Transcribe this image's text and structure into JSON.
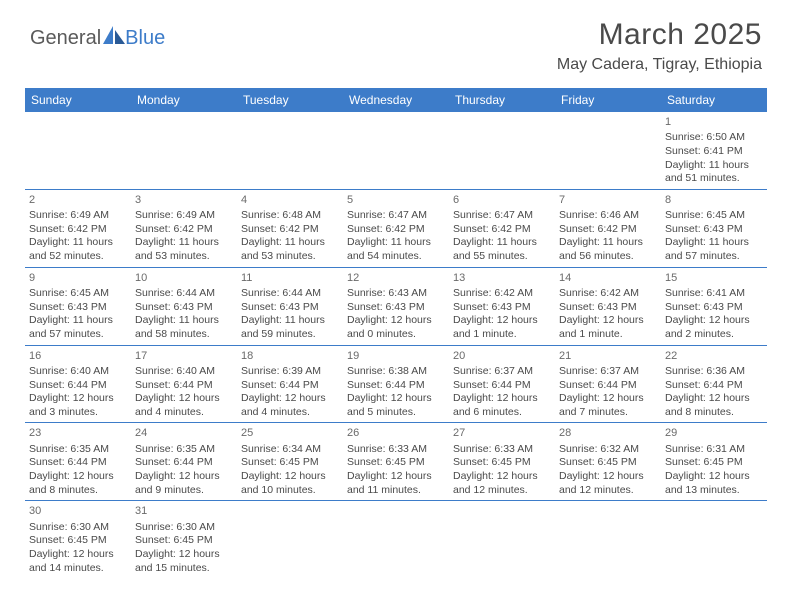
{
  "logo": {
    "part1": "General",
    "part2": "Blue"
  },
  "title": "March 2025",
  "location": "May Cadera, Tigray, Ethiopia",
  "colors": {
    "header_bg": "#3d7cc9",
    "header_text": "#ffffff",
    "body_text": "#4a4a4a",
    "daynum": "#6a6a6a",
    "row_border": "#3d7cc9",
    "logo_gray": "#5a5a5a",
    "logo_blue": "#3d7cc9",
    "page_bg": "#ffffff"
  },
  "weekdays": [
    "Sunday",
    "Monday",
    "Tuesday",
    "Wednesday",
    "Thursday",
    "Friday",
    "Saturday"
  ],
  "cells": [
    [
      null,
      null,
      null,
      null,
      null,
      null,
      {
        "d": "1",
        "sr": "6:50 AM",
        "ss": "6:41 PM",
        "dl": "11 hours and 51 minutes."
      }
    ],
    [
      {
        "d": "2",
        "sr": "6:49 AM",
        "ss": "6:42 PM",
        "dl": "11 hours and 52 minutes."
      },
      {
        "d": "3",
        "sr": "6:49 AM",
        "ss": "6:42 PM",
        "dl": "11 hours and 53 minutes."
      },
      {
        "d": "4",
        "sr": "6:48 AM",
        "ss": "6:42 PM",
        "dl": "11 hours and 53 minutes."
      },
      {
        "d": "5",
        "sr": "6:47 AM",
        "ss": "6:42 PM",
        "dl": "11 hours and 54 minutes."
      },
      {
        "d": "6",
        "sr": "6:47 AM",
        "ss": "6:42 PM",
        "dl": "11 hours and 55 minutes."
      },
      {
        "d": "7",
        "sr": "6:46 AM",
        "ss": "6:42 PM",
        "dl": "11 hours and 56 minutes."
      },
      {
        "d": "8",
        "sr": "6:45 AM",
        "ss": "6:43 PM",
        "dl": "11 hours and 57 minutes."
      }
    ],
    [
      {
        "d": "9",
        "sr": "6:45 AM",
        "ss": "6:43 PM",
        "dl": "11 hours and 57 minutes."
      },
      {
        "d": "10",
        "sr": "6:44 AM",
        "ss": "6:43 PM",
        "dl": "11 hours and 58 minutes."
      },
      {
        "d": "11",
        "sr": "6:44 AM",
        "ss": "6:43 PM",
        "dl": "11 hours and 59 minutes."
      },
      {
        "d": "12",
        "sr": "6:43 AM",
        "ss": "6:43 PM",
        "dl": "12 hours and 0 minutes."
      },
      {
        "d": "13",
        "sr": "6:42 AM",
        "ss": "6:43 PM",
        "dl": "12 hours and 1 minute."
      },
      {
        "d": "14",
        "sr": "6:42 AM",
        "ss": "6:43 PM",
        "dl": "12 hours and 1 minute."
      },
      {
        "d": "15",
        "sr": "6:41 AM",
        "ss": "6:43 PM",
        "dl": "12 hours and 2 minutes."
      }
    ],
    [
      {
        "d": "16",
        "sr": "6:40 AM",
        "ss": "6:44 PM",
        "dl": "12 hours and 3 minutes."
      },
      {
        "d": "17",
        "sr": "6:40 AM",
        "ss": "6:44 PM",
        "dl": "12 hours and 4 minutes."
      },
      {
        "d": "18",
        "sr": "6:39 AM",
        "ss": "6:44 PM",
        "dl": "12 hours and 4 minutes."
      },
      {
        "d": "19",
        "sr": "6:38 AM",
        "ss": "6:44 PM",
        "dl": "12 hours and 5 minutes."
      },
      {
        "d": "20",
        "sr": "6:37 AM",
        "ss": "6:44 PM",
        "dl": "12 hours and 6 minutes."
      },
      {
        "d": "21",
        "sr": "6:37 AM",
        "ss": "6:44 PM",
        "dl": "12 hours and 7 minutes."
      },
      {
        "d": "22",
        "sr": "6:36 AM",
        "ss": "6:44 PM",
        "dl": "12 hours and 8 minutes."
      }
    ],
    [
      {
        "d": "23",
        "sr": "6:35 AM",
        "ss": "6:44 PM",
        "dl": "12 hours and 8 minutes."
      },
      {
        "d": "24",
        "sr": "6:35 AM",
        "ss": "6:44 PM",
        "dl": "12 hours and 9 minutes."
      },
      {
        "d": "25",
        "sr": "6:34 AM",
        "ss": "6:45 PM",
        "dl": "12 hours and 10 minutes."
      },
      {
        "d": "26",
        "sr": "6:33 AM",
        "ss": "6:45 PM",
        "dl": "12 hours and 11 minutes."
      },
      {
        "d": "27",
        "sr": "6:33 AM",
        "ss": "6:45 PM",
        "dl": "12 hours and 12 minutes."
      },
      {
        "d": "28",
        "sr": "6:32 AM",
        "ss": "6:45 PM",
        "dl": "12 hours and 12 minutes."
      },
      {
        "d": "29",
        "sr": "6:31 AM",
        "ss": "6:45 PM",
        "dl": "12 hours and 13 minutes."
      }
    ],
    [
      {
        "d": "30",
        "sr": "6:30 AM",
        "ss": "6:45 PM",
        "dl": "12 hours and 14 minutes."
      },
      {
        "d": "31",
        "sr": "6:30 AM",
        "ss": "6:45 PM",
        "dl": "12 hours and 15 minutes."
      },
      null,
      null,
      null,
      null,
      null
    ]
  ],
  "labels": {
    "sunrise": "Sunrise:",
    "sunset": "Sunset:",
    "daylight": "Daylight:"
  }
}
